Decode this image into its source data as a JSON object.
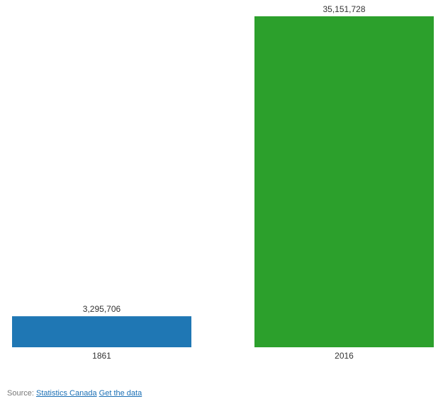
{
  "chart_data": {
    "type": "bar",
    "categories": [
      "1861",
      "2016"
    ],
    "values": [
      3295706,
      35151728
    ],
    "value_labels": [
      "3,295,706",
      "35,151,728"
    ],
    "colors": [
      "#1f77b4",
      "#2ca02c"
    ],
    "title": "",
    "xlabel": "",
    "ylabel": "",
    "ylim": [
      0,
      35151728
    ],
    "grid": false,
    "legend": "none"
  },
  "source": {
    "prefix": "Source:",
    "link_label": "Statistics Canada",
    "data_link_label": "Get the data"
  }
}
